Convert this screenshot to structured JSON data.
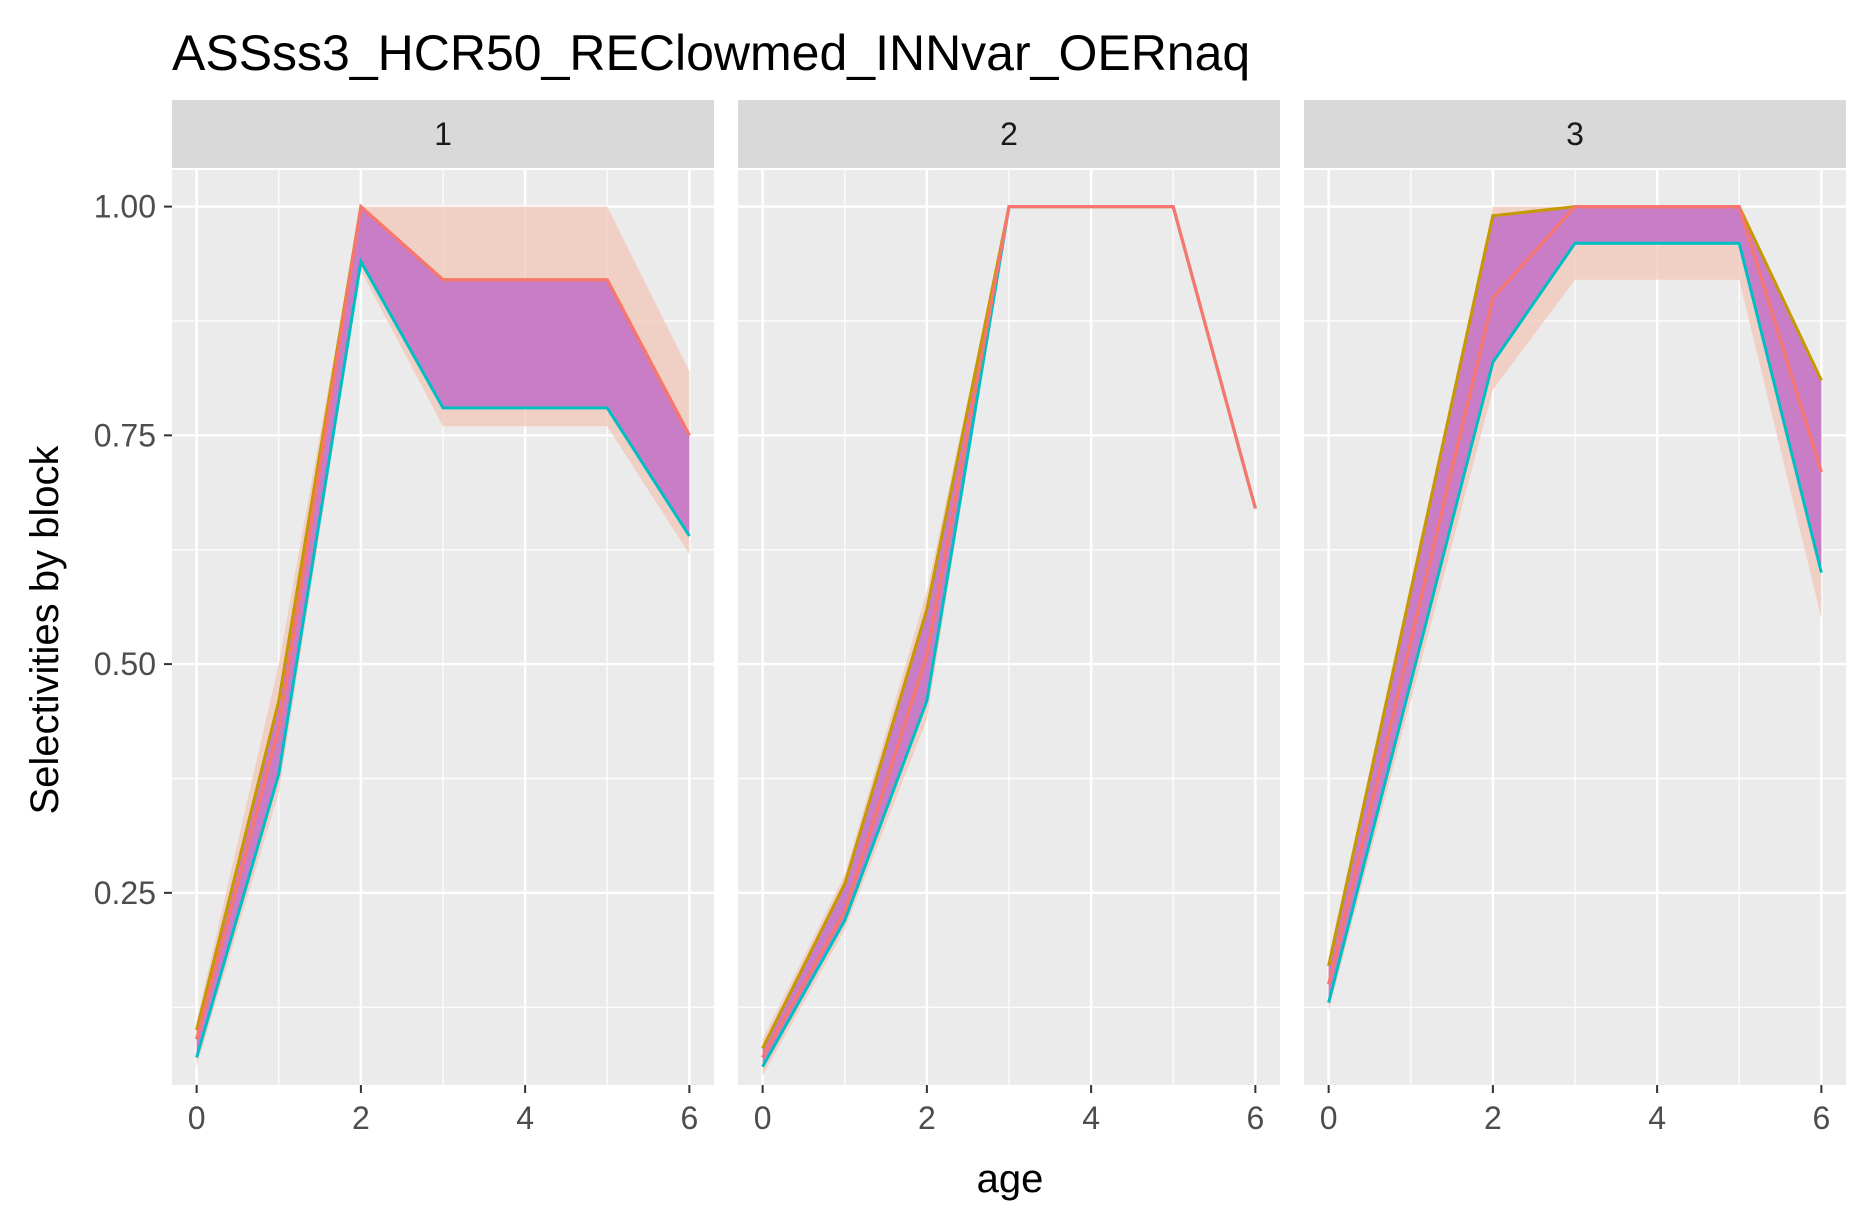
{
  "chart_data": {
    "type": "area",
    "title": "ASSss3_HCR50_REClowmed_INNvar_OERnaq",
    "xlabel": "age",
    "ylabel": "Selectivities by block",
    "xlim": [
      -0.3,
      6.3
    ],
    "ylim": [
      0.04,
      1.04
    ],
    "x_ticks": [
      0,
      2,
      4,
      6
    ],
    "y_ticks": [
      0.25,
      0.5,
      0.75,
      1.0
    ],
    "y_tick_labels": [
      "0.25",
      "0.50",
      "0.75",
      "1.00"
    ],
    "grid": true,
    "panels": [
      {
        "label": "1",
        "ages": [
          0,
          1,
          2,
          3,
          4,
          5,
          6
        ],
        "band_upper": [
          0.11,
          0.5,
          1.0,
          1.0,
          1.0,
          1.0,
          0.82
        ],
        "band_lower": [
          0.06,
          0.36,
          0.93,
          0.76,
          0.76,
          0.76,
          0.62
        ],
        "upper_line": [
          0.1,
          0.46,
          1.0,
          0.92,
          0.92,
          0.92,
          0.75
        ],
        "lower_line": [
          0.07,
          0.38,
          0.94,
          0.78,
          0.78,
          0.78,
          0.64
        ],
        "median": [
          0.09,
          0.43,
          1.0,
          0.92,
          0.92,
          0.92,
          0.75
        ]
      },
      {
        "label": "2",
        "ages": [
          0,
          1,
          2,
          3,
          4,
          5,
          6
        ],
        "band_upper": [
          0.09,
          0.27,
          0.58,
          1.0,
          1.0,
          1.0,
          0.67
        ],
        "band_lower": [
          0.05,
          0.21,
          0.44,
          1.0,
          1.0,
          1.0,
          0.67
        ],
        "upper_line": [
          0.08,
          0.26,
          0.56,
          1.0,
          1.0,
          1.0,
          0.67
        ],
        "lower_line": [
          0.06,
          0.22,
          0.46,
          1.0,
          1.0,
          1.0,
          0.67
        ],
        "median": [
          0.07,
          0.23,
          0.51,
          1.0,
          1.0,
          1.0,
          0.67
        ]
      },
      {
        "label": "3",
        "ages": [
          0,
          2,
          3,
          4,
          5,
          6
        ],
        "band_upper": [
          0.18,
          1.0,
          1.0,
          1.0,
          1.0,
          0.81
        ],
        "band_lower": [
          0.12,
          0.8,
          0.92,
          0.92,
          0.92,
          0.55
        ],
        "upper_line": [
          0.17,
          0.99,
          1.0,
          1.0,
          1.0,
          0.81
        ],
        "lower_line": [
          0.13,
          0.83,
          0.96,
          0.96,
          0.96,
          0.6
        ],
        "median": [
          0.15,
          0.9,
          1.0,
          1.0,
          1.0,
          0.71
        ]
      }
    ]
  },
  "colors": {
    "panel_background": "#ebebeb",
    "strip_background": "#d9d9d9",
    "grid": "#ffffff",
    "band_fill": "#c678c6",
    "band_fill_outer": "#f2c6b8",
    "line_green": "#7cae00",
    "line_teal": "#00bfc4",
    "line_gold": "#c49a00",
    "line_orange": "#e68613",
    "median_line": "#f8766d",
    "median_line_pink": "#f564e3"
  }
}
